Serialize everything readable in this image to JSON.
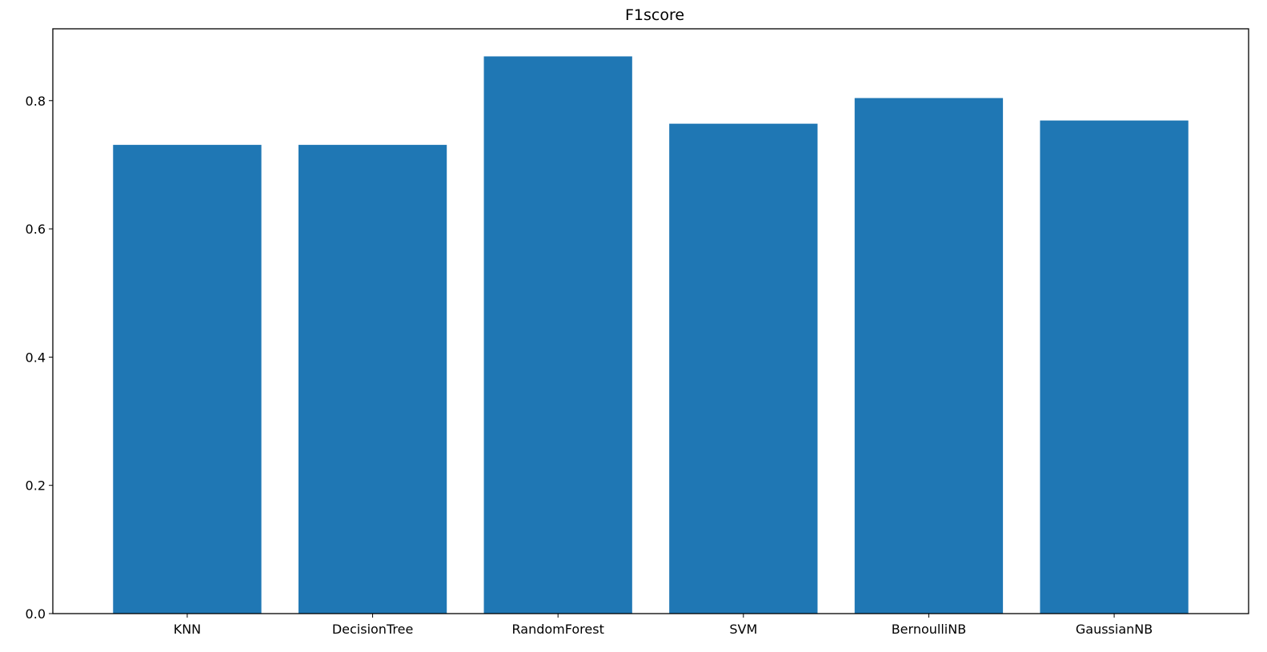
{
  "chart_data": {
    "type": "bar",
    "title": "F1score",
    "xlabel": "",
    "ylabel": "",
    "categories": [
      "KNN",
      "DecisionTree",
      "RandomForest",
      "SVM",
      "BernoulliNB",
      "GaussianNB"
    ],
    "values": [
      0.731,
      0.731,
      0.869,
      0.764,
      0.804,
      0.769
    ],
    "ylim": [
      0,
      0.912
    ],
    "yticks": [
      0.0,
      0.2,
      0.4,
      0.6,
      0.8
    ],
    "ytick_labels": [
      "0.0",
      "0.2",
      "0.4",
      "0.6",
      "0.8"
    ],
    "grid": false,
    "legend": "none",
    "bar_color": "#1f77b4"
  }
}
